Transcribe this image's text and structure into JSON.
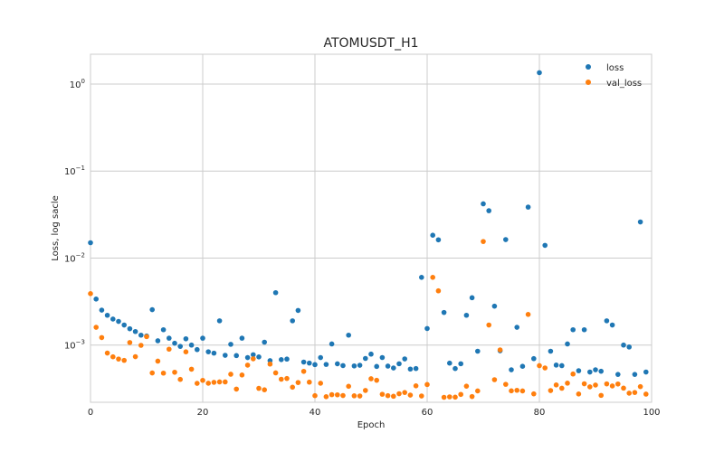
{
  "chart_data": {
    "type": "scatter",
    "title": "ATOMUSDT_H1",
    "xlabel": "Epoch",
    "ylabel": "Loss, log sacle",
    "xlim": [
      0,
      100
    ],
    "ylim": [
      0.00022,
      2.2
    ],
    "yscale": "log",
    "grid": true,
    "legend_position": "top-right",
    "x_ticks": [
      0,
      20,
      40,
      60,
      80,
      100
    ],
    "y_ticks": [
      {
        "value": 0.001,
        "base": "10",
        "exp": "−3"
      },
      {
        "value": 0.01,
        "base": "10",
        "exp": "−2"
      },
      {
        "value": 0.1,
        "base": "10",
        "exp": "−1"
      },
      {
        "value": 1,
        "base": "10",
        "exp": "0"
      }
    ],
    "series": [
      {
        "name": "loss",
        "color": "#1f77b4",
        "values": [
          0.015,
          0.00338,
          0.00252,
          0.0022,
          0.00199,
          0.00187,
          0.0017,
          0.00154,
          0.00143,
          0.0013,
          0.00127,
          0.00255,
          0.00112,
          0.0015,
          0.0012,
          0.00105,
          0.000966,
          0.00118,
          0.001,
          0.000887,
          0.0012,
          0.000837,
          0.000808,
          0.0019,
          0.000763,
          0.00102,
          0.000757,
          0.0012,
          0.000718,
          0.000775,
          0.000731,
          0.00108,
          0.000662,
          0.004,
          0.00068,
          0.00069,
          0.0019,
          0.0025,
          0.000638,
          0.000621,
          0.000596,
          0.000718,
          0.000599,
          0.00103,
          0.000609,
          0.000581,
          0.0013,
          0.000576,
          0.000586,
          0.000702,
          0.000787,
          0.000568,
          0.000719,
          0.000573,
          0.000545,
          0.00061,
          0.000693,
          0.00053,
          0.000537,
          0.006,
          0.00155,
          0.0183,
          0.0162,
          0.00237,
          0.00062,
          0.000537,
          0.00061,
          0.0022,
          0.0035,
          0.00085,
          0.042,
          0.035,
          0.0028,
          0.00086,
          0.0163,
          0.00052,
          0.0016,
          0.00057,
          0.0385,
          0.000698,
          1.35,
          0.014,
          0.00085,
          0.000589,
          0.00058,
          0.00103,
          0.0015,
          0.000507,
          0.0015,
          0.00049,
          0.00052,
          0.0005,
          0.0019,
          0.0017,
          0.00046,
          0.001,
          0.00095,
          0.00046,
          0.026,
          0.00049
        ]
      },
      {
        "name": "val_loss",
        "color": "#ff7f0e",
        "values": [
          0.0039,
          0.0016,
          0.00122,
          0.000809,
          0.000733,
          0.000691,
          0.000667,
          0.00107,
          0.000735,
          0.000993,
          0.00125,
          0.000478,
          0.000654,
          0.000476,
          0.000897,
          0.000487,
          0.000403,
          0.000836,
          0.000528,
          0.000363,
          0.000393,
          0.000364,
          0.000373,
          0.000377,
          0.000377,
          0.000462,
          0.000312,
          0.000453,
          0.000588,
          0.000695,
          0.000318,
          0.000306,
          0.000605,
          0.000479,
          0.000405,
          0.000413,
          0.000328,
          0.000371,
          0.000499,
          0.000375,
          0.000262,
          0.000364,
          0.000255,
          0.000269,
          0.000268,
          0.000263,
          0.000336,
          0.000261,
          0.00026,
          0.000301,
          0.00041,
          0.000394,
          0.000272,
          0.000262,
          0.000258,
          0.000276,
          0.000285,
          0.000266,
          0.00034,
          0.00026,
          0.000352,
          0.006,
          0.0042,
          0.000251,
          0.000254,
          0.000252,
          0.000271,
          0.000337,
          0.000256,
          0.000297,
          0.0155,
          0.0017,
          0.0004,
          0.00088,
          0.000354,
          0.000298,
          0.000302,
          0.000297,
          0.00225,
          0.000275,
          0.00058,
          0.000546,
          0.0003,
          0.000348,
          0.000319,
          0.000365,
          0.000465,
          0.000274,
          0.000359,
          0.000331,
          0.000347,
          0.000264,
          0.000358,
          0.000339,
          0.000357,
          0.00032,
          0.00028,
          0.000285,
          0.000333,
          0.000273
        ]
      }
    ]
  }
}
